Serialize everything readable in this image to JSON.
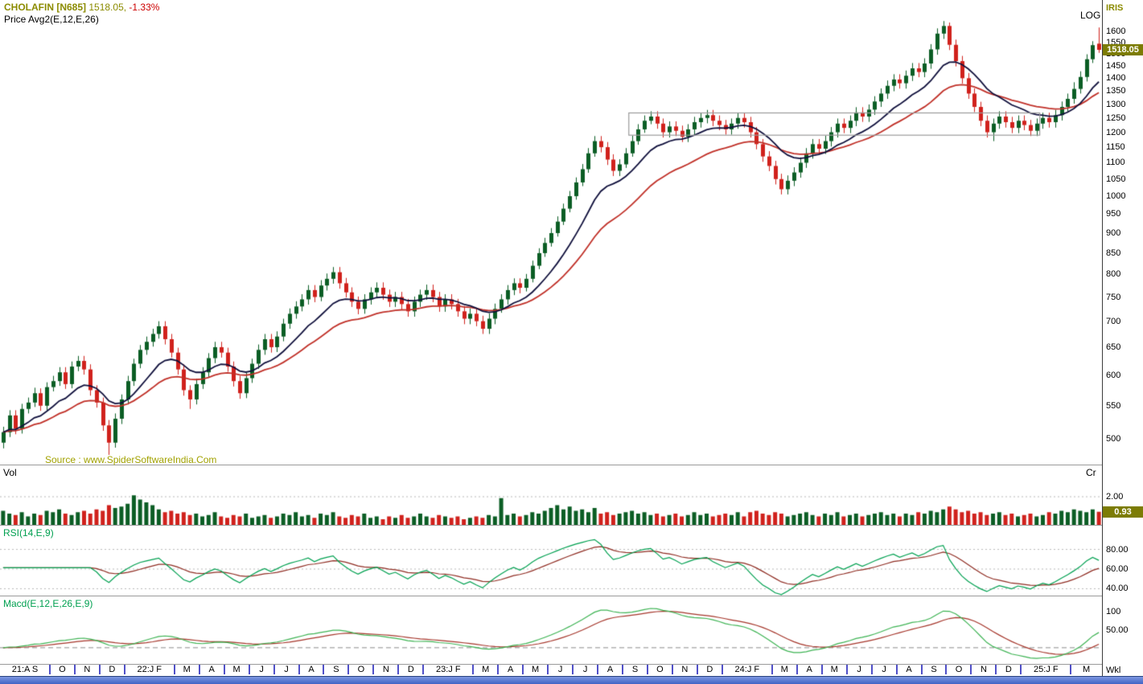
{
  "header": {
    "symbol": "CHOLAFIN [N685]",
    "last_price": "1518.05,",
    "change_pct": "-1.33%",
    "indicator_line": "Price  Avg2(E,12,E,26)"
  },
  "price_panel": {
    "scale_label": "LOG",
    "axis_title": "IRIS",
    "badge": "1518.05",
    "axis_ticks": [
      1600,
      1550,
      1500,
      1450,
      1400,
      1350,
      1300,
      1250,
      1200,
      1150,
      1100,
      1050,
      1000,
      950,
      900,
      850,
      800,
      750,
      700,
      650,
      600,
      550,
      500
    ],
    "source_text": "Source : www.SpiderSoftwareIndia.Com"
  },
  "volume_panel": {
    "label": "Vol",
    "unit": "Cr",
    "gridline": "2.00",
    "badge": "0.93"
  },
  "rsi_panel": {
    "label": "RSI(14,E,9)",
    "axis_ticks": [
      "80.00",
      "60.00",
      "40.00"
    ]
  },
  "macd_panel": {
    "label": "Macd(E,12,E,26,E,9)",
    "axis_ticks": [
      "100",
      "50.00"
    ]
  },
  "x_axis": {
    "period_label": "Wkl",
    "labels": [
      {
        "t": "21:A S",
        "m": 2
      },
      {
        "t": "O",
        "m": 1
      },
      {
        "t": "N",
        "m": 1
      },
      {
        "t": "D",
        "m": 1
      },
      {
        "t": "22:J F",
        "m": 2
      },
      {
        "t": "M",
        "m": 1
      },
      {
        "t": "A",
        "m": 1
      },
      {
        "t": "M",
        "m": 1
      },
      {
        "t": "J",
        "m": 1
      },
      {
        "t": "J",
        "m": 1
      },
      {
        "t": "A",
        "m": 1
      },
      {
        "t": "S",
        "m": 1
      },
      {
        "t": "O",
        "m": 1
      },
      {
        "t": "N",
        "m": 1
      },
      {
        "t": "D",
        "m": 1
      },
      {
        "t": "23:J F",
        "m": 2
      },
      {
        "t": "M",
        "m": 1
      },
      {
        "t": "A",
        "m": 1
      },
      {
        "t": "M",
        "m": 1
      },
      {
        "t": "J",
        "m": 1
      },
      {
        "t": "J",
        "m": 1
      },
      {
        "t": "A",
        "m": 1
      },
      {
        "t": "S",
        "m": 1
      },
      {
        "t": "O",
        "m": 1
      },
      {
        "t": "N",
        "m": 1
      },
      {
        "t": "D",
        "m": 1
      },
      {
        "t": "24:J F",
        "m": 2
      },
      {
        "t": "M",
        "m": 1
      },
      {
        "t": "A",
        "m": 1
      },
      {
        "t": "M",
        "m": 1
      },
      {
        "t": "J",
        "m": 1
      },
      {
        "t": "J",
        "m": 1
      },
      {
        "t": "A",
        "m": 1
      },
      {
        "t": "S",
        "m": 1
      },
      {
        "t": "O",
        "m": 1
      },
      {
        "t": "N",
        "m": 1
      },
      {
        "t": "D",
        "m": 1
      },
      {
        "t": "25:J F",
        "m": 2
      },
      {
        "t": "M",
        "m": 1
      }
    ]
  },
  "colors": {
    "bull": "#0b5d24",
    "bear": "#d0211c",
    "ema_fast": "#10103c",
    "ema_slow": "#c03028",
    "rsi": "#00a050",
    "rsi_signal": "#8f2c22",
    "macd": "#3db353",
    "macd_signal": "#a5352a",
    "badge_bg": "#7c7c04",
    "annotation": "#9a9a9a",
    "scrollbar": "#4a6bc9",
    "grid_dotted": "#b8b8b8"
  },
  "chart_data": {
    "type": "candlestick",
    "symbol": "CHOLAFIN",
    "series_interval": "weekly",
    "x_range": [
      "2021-08",
      "2025-03"
    ],
    "price_log_scale": true,
    "ylim": [
      465,
      1750
    ],
    "last_close": 1518.05,
    "change_pct": -1.33,
    "indicators": [
      {
        "name": "EMA",
        "period": 12
      },
      {
        "name": "EMA",
        "period": 26
      },
      {
        "name": "RSI",
        "params": "14,E,9",
        "axis": [
          40,
          60,
          80
        ]
      },
      {
        "name": "MACD",
        "params": "E,12,E,26,E,9",
        "axis": [
          0,
          50,
          100
        ]
      }
    ],
    "annotation_box": {
      "start_index": 101,
      "end_index": 167,
      "price_low": 1190,
      "price_high": 1268
    },
    "month_weeks": [
      4,
      4,
      4,
      4,
      4,
      4,
      4,
      4,
      4,
      4,
      4,
      4,
      4,
      4,
      4,
      4,
      4,
      4,
      4,
      4,
      4,
      4,
      4,
      4,
      4,
      4,
      4,
      4,
      4,
      4,
      4,
      4,
      4,
      4,
      4,
      4,
      4,
      4,
      4,
      4,
      4,
      4,
      4,
      5
    ],
    "candles": [
      [
        495,
        518,
        487,
        510
      ],
      [
        510,
        543,
        503,
        535
      ],
      [
        535,
        543,
        507,
        515
      ],
      [
        515,
        553,
        508,
        545
      ],
      [
        545,
        563,
        538,
        555
      ],
      [
        555,
        579,
        548,
        570
      ],
      [
        570,
        578,
        542,
        550
      ],
      [
        550,
        588,
        543,
        580
      ],
      [
        580,
        599,
        573,
        590
      ],
      [
        590,
        614,
        582,
        605
      ],
      [
        605,
        614,
        577,
        585
      ],
      [
        585,
        624,
        578,
        615
      ],
      [
        615,
        634,
        607,
        625
      ],
      [
        625,
        634,
        601,
        610
      ],
      [
        610,
        619,
        566,
        575
      ],
      [
        575,
        583,
        547,
        555
      ],
      [
        555,
        563,
        512,
        520
      ],
      [
        520,
        528,
        478,
        495
      ],
      [
        495,
        538,
        488,
        530
      ],
      [
        530,
        568,
        522,
        560
      ],
      [
        560,
        599,
        552,
        590
      ],
      [
        590,
        629,
        582,
        620
      ],
      [
        620,
        654,
        612,
        645
      ],
      [
        645,
        670,
        636,
        660
      ],
      [
        660,
        685,
        651,
        675
      ],
      [
        675,
        700,
        666,
        690
      ],
      [
        690,
        700,
        655,
        665
      ],
      [
        665,
        675,
        631,
        640
      ],
      [
        640,
        649,
        601,
        610
      ],
      [
        610,
        619,
        566,
        575
      ],
      [
        575,
        583,
        545,
        560
      ],
      [
        560,
        594,
        552,
        585
      ],
      [
        585,
        614,
        577,
        605
      ],
      [
        605,
        639,
        597,
        630
      ],
      [
        630,
        660,
        621,
        650
      ],
      [
        650,
        660,
        631,
        640
      ],
      [
        640,
        649,
        606,
        615
      ],
      [
        615,
        624,
        581,
        590
      ],
      [
        590,
        599,
        561,
        570
      ],
      [
        570,
        604,
        562,
        595
      ],
      [
        595,
        629,
        587,
        620
      ],
      [
        620,
        655,
        611,
        645
      ],
      [
        645,
        675,
        636,
        665
      ],
      [
        665,
        675,
        640,
        650
      ],
      [
        650,
        680,
        641,
        670
      ],
      [
        670,
        705,
        661,
        695
      ],
      [
        695,
        726,
        685,
        715
      ],
      [
        715,
        741,
        705,
        730
      ],
      [
        730,
        756,
        720,
        745
      ],
      [
        745,
        776,
        734,
        765
      ],
      [
        765,
        776,
        739,
        750
      ],
      [
        750,
        787,
        741,
        775
      ],
      [
        775,
        802,
        764,
        790
      ],
      [
        790,
        817,
        779,
        805
      ],
      [
        805,
        817,
        768,
        780
      ],
      [
        780,
        792,
        749,
        760
      ],
      [
        760,
        771,
        729,
        740
      ],
      [
        740,
        751,
        714,
        725
      ],
      [
        725,
        756,
        715,
        745
      ],
      [
        745,
        771,
        734,
        760
      ],
      [
        760,
        782,
        749,
        770
      ],
      [
        770,
        782,
        744,
        755
      ],
      [
        755,
        766,
        729,
        740
      ],
      [
        740,
        761,
        729,
        750
      ],
      [
        750,
        761,
        724,
        735
      ],
      [
        735,
        746,
        709,
        720
      ],
      [
        720,
        751,
        709,
        740
      ],
      [
        740,
        766,
        729,
        755
      ],
      [
        755,
        777,
        744,
        765
      ],
      [
        765,
        777,
        739,
        750
      ],
      [
        750,
        761,
        719,
        730
      ],
      [
        730,
        756,
        719,
        745
      ],
      [
        745,
        756,
        724,
        735
      ],
      [
        735,
        746,
        709,
        720
      ],
      [
        720,
        731,
        694,
        705
      ],
      [
        705,
        726,
        694,
        715
      ],
      [
        715,
        726,
        690,
        700
      ],
      [
        700,
        711,
        675,
        685
      ],
      [
        685,
        716,
        675,
        705
      ],
      [
        705,
        736,
        694,
        725
      ],
      [
        725,
        756,
        717,
        745
      ],
      [
        745,
        776,
        734,
        765
      ],
      [
        765,
        791,
        754,
        780
      ],
      [
        780,
        791,
        758,
        770
      ],
      [
        770,
        801,
        762,
        790
      ],
      [
        790,
        832,
        782,
        820
      ],
      [
        820,
        862,
        812,
        850
      ],
      [
        850,
        888,
        841,
        875
      ],
      [
        875,
        913,
        866,
        900
      ],
      [
        900,
        944,
        891,
        930
      ],
      [
        930,
        979,
        921,
        965
      ],
      [
        965,
        1015,
        955,
        1000
      ],
      [
        1000,
        1055,
        990,
        1040
      ],
      [
        1040,
        1096,
        1029,
        1080
      ],
      [
        1080,
        1147,
        1069,
        1130
      ],
      [
        1130,
        1187,
        1119,
        1170
      ],
      [
        1170,
        1187,
        1133,
        1150
      ],
      [
        1150,
        1167,
        1093,
        1110
      ],
      [
        1110,
        1127,
        1059,
        1075
      ],
      [
        1075,
        1111,
        1059,
        1095
      ],
      [
        1095,
        1147,
        1084,
        1130
      ],
      [
        1130,
        1188,
        1119,
        1170
      ],
      [
        1170,
        1228,
        1158,
        1210
      ],
      [
        1210,
        1259,
        1198,
        1240
      ],
      [
        1240,
        1274,
        1228,
        1255
      ],
      [
        1255,
        1274,
        1212,
        1230
      ],
      [
        1230,
        1248,
        1182,
        1200
      ],
      [
        1200,
        1238,
        1182,
        1220
      ],
      [
        1220,
        1238,
        1187,
        1205
      ],
      [
        1205,
        1223,
        1167,
        1185
      ],
      [
        1185,
        1228,
        1167,
        1210
      ],
      [
        1210,
        1254,
        1192,
        1235
      ],
      [
        1235,
        1269,
        1216,
        1250
      ],
      [
        1250,
        1279,
        1231,
        1260
      ],
      [
        1260,
        1279,
        1221,
        1240
      ],
      [
        1240,
        1259,
        1207,
        1225
      ],
      [
        1225,
        1243,
        1192,
        1210
      ],
      [
        1210,
        1248,
        1192,
        1230
      ],
      [
        1230,
        1269,
        1212,
        1250
      ],
      [
        1250,
        1269,
        1216,
        1235
      ],
      [
        1235,
        1254,
        1182,
        1200
      ],
      [
        1200,
        1218,
        1143,
        1160
      ],
      [
        1160,
        1177,
        1103,
        1120
      ],
      [
        1120,
        1137,
        1074,
        1090
      ],
      [
        1090,
        1106,
        1034,
        1050
      ],
      [
        1050,
        1066,
        1005,
        1020
      ],
      [
        1020,
        1061,
        1005,
        1045
      ],
      [
        1045,
        1086,
        1029,
        1070
      ],
      [
        1070,
        1117,
        1054,
        1100
      ],
      [
        1100,
        1147,
        1084,
        1130
      ],
      [
        1130,
        1177,
        1113,
        1160
      ],
      [
        1160,
        1177,
        1128,
        1145
      ],
      [
        1145,
        1188,
        1128,
        1170
      ],
      [
        1170,
        1218,
        1152,
        1200
      ],
      [
        1200,
        1248,
        1182,
        1230
      ],
      [
        1230,
        1248,
        1197,
        1215
      ],
      [
        1215,
        1259,
        1197,
        1240
      ],
      [
        1240,
        1289,
        1221,
        1270
      ],
      [
        1270,
        1289,
        1236,
        1255
      ],
      [
        1255,
        1299,
        1236,
        1280
      ],
      [
        1280,
        1330,
        1261,
        1310
      ],
      [
        1310,
        1360,
        1290,
        1340
      ],
      [
        1340,
        1391,
        1320,
        1370
      ],
      [
        1370,
        1416,
        1349,
        1395
      ],
      [
        1395,
        1416,
        1359,
        1380
      ],
      [
        1380,
        1431,
        1359,
        1410
      ],
      [
        1410,
        1462,
        1389,
        1440
      ],
      [
        1440,
        1462,
        1404,
        1425
      ],
      [
        1425,
        1482,
        1404,
        1460
      ],
      [
        1460,
        1543,
        1438,
        1520
      ],
      [
        1520,
        1614,
        1497,
        1590
      ],
      [
        1590,
        1648,
        1566,
        1625
      ],
      [
        1625,
        1641,
        1517,
        1540
      ],
      [
        1540,
        1563,
        1448,
        1470
      ],
      [
        1470,
        1492,
        1379,
        1400
      ],
      [
        1400,
        1421,
        1320,
        1340
      ],
      [
        1340,
        1360,
        1271,
        1290
      ],
      [
        1290,
        1309,
        1221,
        1240
      ],
      [
        1240,
        1259,
        1182,
        1200
      ],
      [
        1200,
        1248,
        1170,
        1230
      ],
      [
        1230,
        1274,
        1212,
        1255
      ],
      [
        1255,
        1274,
        1216,
        1235
      ],
      [
        1235,
        1254,
        1197,
        1215
      ],
      [
        1215,
        1259,
        1197,
        1240
      ],
      [
        1240,
        1259,
        1207,
        1225
      ],
      [
        1225,
        1243,
        1187,
        1205
      ],
      [
        1205,
        1248,
        1187,
        1230
      ],
      [
        1230,
        1269,
        1212,
        1250
      ],
      [
        1250,
        1269,
        1216,
        1235
      ],
      [
        1235,
        1279,
        1216,
        1260
      ],
      [
        1260,
        1310,
        1241,
        1290
      ],
      [
        1290,
        1340,
        1271,
        1320
      ],
      [
        1320,
        1384,
        1302,
        1358
      ],
      [
        1358,
        1428,
        1340,
        1405
      ],
      [
        1405,
        1499,
        1387,
        1478
      ],
      [
        1478,
        1556,
        1462,
        1538.5
      ],
      [
        1545,
        1618,
        1505,
        1518.05
      ]
    ],
    "volumes": [
      1.0,
      0.8,
      0.7,
      0.9,
      0.6,
      0.8,
      0.7,
      1.0,
      0.9,
      1.1,
      0.8,
      0.7,
      0.9,
      1.0,
      0.8,
      1.1,
      1.0,
      1.4,
      1.2,
      1.3,
      1.5,
      2.1,
      1.8,
      1.6,
      1.4,
      1.1,
      0.9,
      1.0,
      0.8,
      0.9,
      0.7,
      0.8,
      0.6,
      0.7,
      0.9,
      0.6,
      0.5,
      0.7,
      0.6,
      0.8,
      0.5,
      0.6,
      0.7,
      0.5,
      0.6,
      0.8,
      0.7,
      0.9,
      0.6,
      0.7,
      0.5,
      0.8,
      0.7,
      0.9,
      0.6,
      0.5,
      0.7,
      0.6,
      0.8,
      0.5,
      0.6,
      0.4,
      0.6,
      0.5,
      0.7,
      0.5,
      0.6,
      0.8,
      0.6,
      0.5,
      0.7,
      0.6,
      0.5,
      0.6,
      0.4,
      0.5,
      0.6,
      0.5,
      0.7,
      0.6,
      1.9,
      0.7,
      0.8,
      0.6,
      0.7,
      0.9,
      0.8,
      1.0,
      1.2,
      1.4,
      1.1,
      1.3,
      1.0,
      1.1,
      0.9,
      1.2,
      0.8,
      0.9,
      0.7,
      0.8,
      0.9,
      1.0,
      0.8,
      0.9,
      0.7,
      0.8,
      0.6,
      0.7,
      0.8,
      0.6,
      0.7,
      0.9,
      0.7,
      0.8,
      0.6,
      0.7,
      0.8,
      0.7,
      0.9,
      0.6,
      0.9,
      1.0,
      0.8,
      0.7,
      0.9,
      0.8,
      0.6,
      0.7,
      0.8,
      0.9,
      0.7,
      0.6,
      0.8,
      0.7,
      0.9,
      0.6,
      0.7,
      0.8,
      0.6,
      0.7,
      0.8,
      0.9,
      0.7,
      0.8,
      0.6,
      0.8,
      0.7,
      0.9,
      0.8,
      1.0,
      0.9,
      1.1,
      1.3,
      1.1,
      0.9,
      1.0,
      0.8,
      0.9,
      0.7,
      0.8,
      0.9,
      0.7,
      0.8,
      0.6,
      0.7,
      0.8,
      0.6,
      0.7,
      0.9,
      0.8,
      1.0,
      0.9,
      1.1,
      1.0,
      0.9,
      1.1,
      0.93
    ]
  }
}
